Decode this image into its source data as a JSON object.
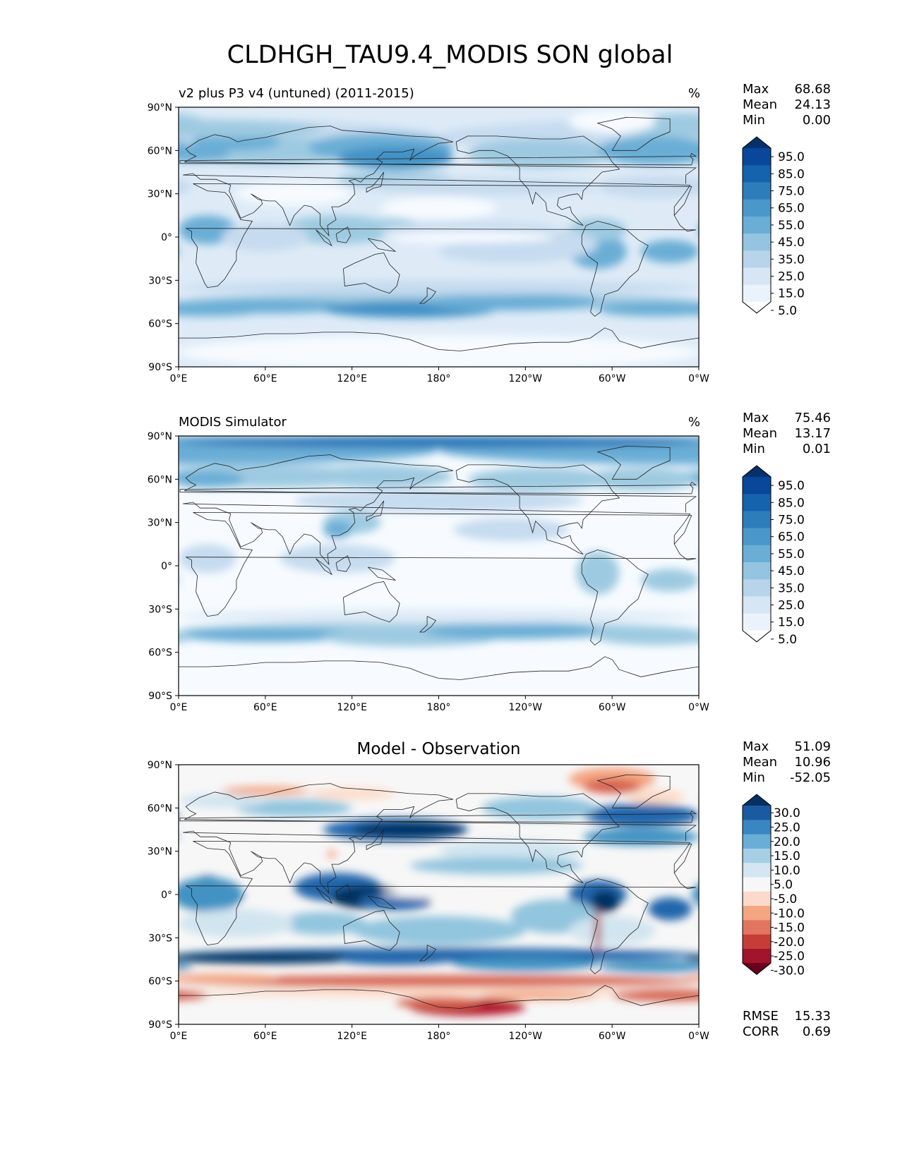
{
  "figure": {
    "title": "CLDHGH_TAU9.4_MODIS SON global"
  },
  "axes": {
    "lat_ticks": [
      "90°N",
      "60°N",
      "30°N",
      "0°",
      "30°S",
      "60°S",
      "90°S"
    ],
    "lon_ticks": [
      "0°E",
      "60°E",
      "120°E",
      "180°",
      "120°W",
      "60°W",
      "0°W"
    ]
  },
  "colors": {
    "blues": [
      "#f7fbff",
      "#deebf7",
      "#c6dbef",
      "#9ecae1",
      "#6baed6",
      "#4292c6",
      "#2171b5",
      "#08519c",
      "#08306b"
    ],
    "diff": [
      "#67001f",
      "#b2182b",
      "#d6604d",
      "#f4a582",
      "#fddbc7",
      "#f7f7f7",
      "#d1e5f0",
      "#92c5de",
      "#4393c3",
      "#2166ac",
      "#053061"
    ]
  },
  "panels": [
    {
      "title": "v2 plus P3 v4 (untuned) (2011-2015)",
      "units": "%",
      "stats": [
        {
          "label": "Max",
          "value": "68.68"
        },
        {
          "label": "Mean",
          "value": "24.13"
        },
        {
          "label": "Min",
          "value": "0.00"
        }
      ],
      "colorbar": {
        "type": "sequential",
        "labels": [
          "95.0",
          "85.0",
          "75.0",
          "65.0",
          "55.0",
          "45.0",
          "35.0",
          "25.0",
          "15.0",
          "5.0"
        ],
        "colors": [
          "#08306b",
          "#08479a",
          "#1562ad",
          "#2d7dbb",
          "#4a98c9",
          "#6aaed6",
          "#94c4df",
          "#b7d4ea",
          "#d6e6f4",
          "#eaf3fb",
          "#ffffff"
        ]
      }
    },
    {
      "title": "MODIS Simulator",
      "units": "%",
      "stats": [
        {
          "label": "Max",
          "value": "75.46"
        },
        {
          "label": "Mean",
          "value": "13.17"
        },
        {
          "label": "Min",
          "value": "0.01"
        }
      ],
      "colorbar": {
        "type": "sequential",
        "labels": [
          "95.0",
          "85.0",
          "75.0",
          "65.0",
          "55.0",
          "45.0",
          "35.0",
          "25.0",
          "15.0",
          "5.0"
        ],
        "colors": [
          "#08306b",
          "#08479a",
          "#1562ad",
          "#2d7dbb",
          "#4a98c9",
          "#6aaed6",
          "#94c4df",
          "#b7d4ea",
          "#d6e6f4",
          "#eaf3fb",
          "#ffffff"
        ]
      }
    },
    {
      "title": "Model - Observation",
      "units": "",
      "stats": [
        {
          "label": "Max",
          "value": "51.09"
        },
        {
          "label": "Mean",
          "value": "10.96"
        },
        {
          "label": "Min",
          "value": "-52.05"
        }
      ],
      "extra_stats": [
        {
          "label": "RMSE",
          "value": "15.33"
        },
        {
          "label": "CORR",
          "value": "0.69"
        }
      ],
      "colorbar": {
        "type": "diverging",
        "labels": [
          "30.0",
          "25.0",
          "20.0",
          "15.0",
          "10.0",
          "5.0",
          "-5.0",
          "-10.0",
          "-15.0",
          "-20.0",
          "-25.0",
          "-30.0"
        ],
        "colors": [
          "#053061",
          "#1a5aa0",
          "#3a86c2",
          "#6aaed6",
          "#a6cfe5",
          "#d4e6f1",
          "#f7f7f7",
          "#fbdacb",
          "#f4a582",
          "#e27560",
          "#c63c37",
          "#a1142b",
          "#67001f"
        ]
      }
    }
  ]
}
